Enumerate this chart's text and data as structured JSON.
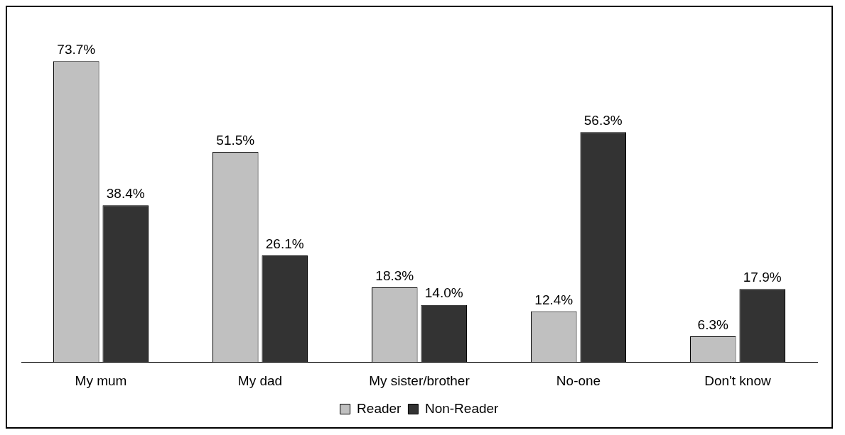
{
  "chart_data": {
    "type": "bar",
    "categories": [
      "My mum",
      "My dad",
      "My sister/brother",
      "No-one",
      "Don't know"
    ],
    "series": [
      {
        "name": "Reader",
        "color": "#c0c0c0",
        "values": [
          73.7,
          51.5,
          18.3,
          12.4,
          6.3
        ],
        "value_labels": [
          "73.7%",
          "51.5%",
          "18.3%",
          "12.4%",
          "6.3%"
        ]
      },
      {
        "name": "Non-Reader",
        "color": "#333333",
        "values": [
          38.4,
          26.1,
          14.0,
          56.3,
          17.9
        ],
        "value_labels": [
          "38.4%",
          "26.1%",
          "14.0%",
          "56.3%",
          "17.9%"
        ]
      }
    ],
    "legend": "bottom",
    "grid": false
  }
}
